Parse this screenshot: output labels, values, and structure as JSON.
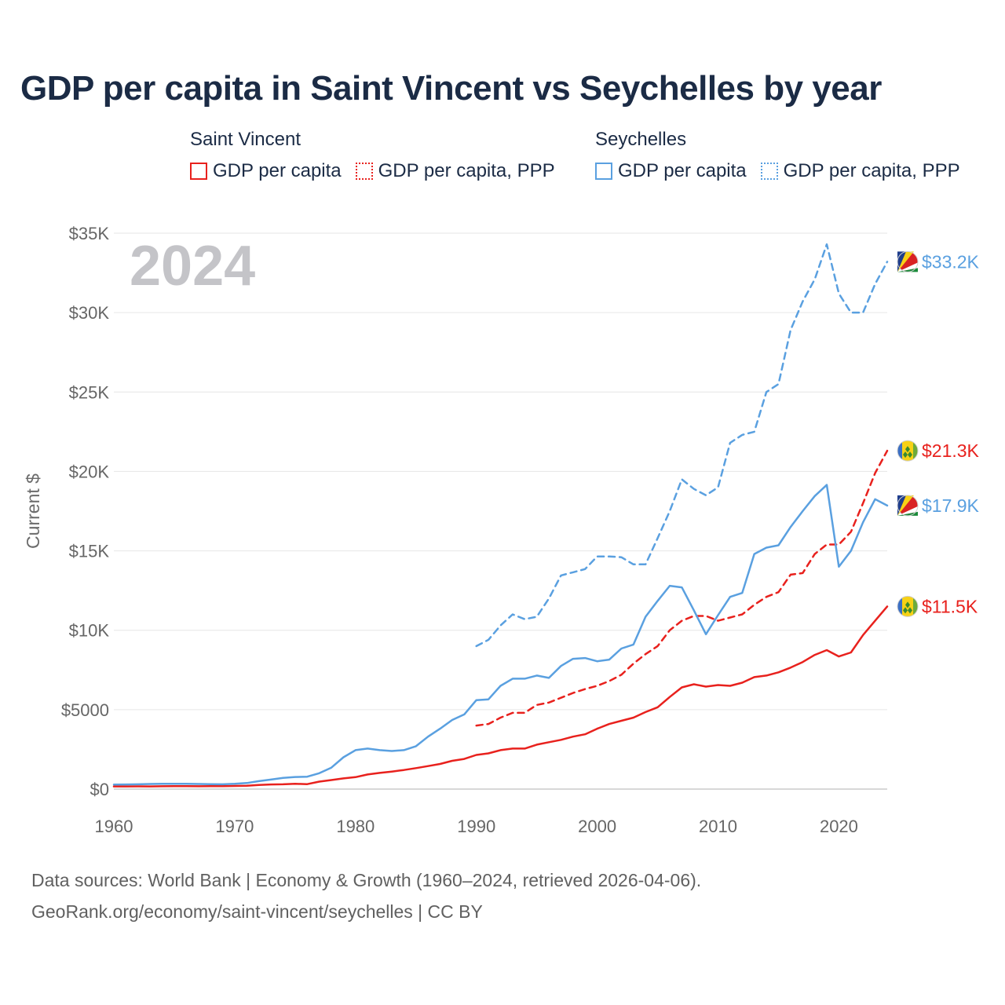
{
  "title": "GDP per capita in Saint Vincent vs Seychelles by year",
  "year_watermark": "2024",
  "legend": {
    "groups": [
      {
        "title": "Saint Vincent",
        "items": [
          {
            "label": "GDP per capita",
            "style": "solid",
            "color": "#e8211d"
          },
          {
            "label": "GDP per capita, PPP",
            "style": "dotted",
            "color": "#e8211d"
          }
        ]
      },
      {
        "title": "Seychelles",
        "items": [
          {
            "label": "GDP per capita",
            "style": "solid",
            "color": "#5aa0e0"
          },
          {
            "label": "GDP per capita, PPP",
            "style": "dotted",
            "color": "#5aa0e0"
          }
        ]
      }
    ]
  },
  "footer": {
    "line1": "Data sources: World Bank | Economy & Growth (1960–2024, retrieved 2026-04-06).",
    "line2": "GeoRank.org/economy/saint-vincent/seychelles | CC BY"
  },
  "chart_data": {
    "type": "line",
    "title": "GDP per capita in Saint Vincent vs Seychelles by year",
    "ylabel": "Current $",
    "xlabel": "",
    "xlim": [
      1960,
      2024
    ],
    "ylim": [
      0,
      35000
    ],
    "x_ticks": [
      1960,
      1970,
      1980,
      1990,
      2000,
      2010,
      2020
    ],
    "x_tick_labels": [
      "1960",
      "1970",
      "1980",
      "1990",
      "2000",
      "2010",
      "2020"
    ],
    "y_ticks": [
      0,
      5000,
      10000,
      15000,
      20000,
      25000,
      30000,
      35000
    ],
    "y_tick_labels": [
      "$0",
      "$5000",
      "$10K",
      "$15K",
      "$20K",
      "$25K",
      "$30K",
      "$35K"
    ],
    "grid": true,
    "series": [
      {
        "name": "Saint Vincent GDP per capita",
        "country": "Saint Vincent",
        "flag": "saint-vincent-flag-icon",
        "color": "#e8211d",
        "dash": "solid",
        "end_label": "$11.5K",
        "x": [
          1960,
          1961,
          1962,
          1963,
          1964,
          1965,
          1966,
          1967,
          1968,
          1969,
          1970,
          1971,
          1972,
          1973,
          1974,
          1975,
          1976,
          1977,
          1978,
          1979,
          1980,
          1981,
          1982,
          1983,
          1984,
          1985,
          1986,
          1987,
          1988,
          1989,
          1990,
          1991,
          1992,
          1993,
          1994,
          1995,
          1996,
          1997,
          1998,
          1999,
          2000,
          2001,
          2002,
          2003,
          2004,
          2005,
          2006,
          2007,
          2008,
          2009,
          2010,
          2011,
          2012,
          2013,
          2014,
          2015,
          2016,
          2017,
          2018,
          2019,
          2020,
          2021,
          2022,
          2023,
          2024
        ],
        "values": [
          170,
          170,
          175,
          170,
          180,
          185,
          185,
          180,
          185,
          185,
          200,
          215,
          260,
          290,
          300,
          330,
          310,
          470,
          570,
          670,
          750,
          920,
          1020,
          1100,
          1200,
          1320,
          1450,
          1580,
          1780,
          1900,
          2150,
          2250,
          2450,
          2550,
          2550,
          2800,
          2950,
          3100,
          3300,
          3450,
          3800,
          4100,
          4300,
          4500,
          4850,
          5150,
          5800,
          6400,
          6600,
          6450,
          6550,
          6500,
          6700,
          7050,
          7150,
          7350,
          7650,
          8000,
          8450,
          8750,
          8350,
          8600,
          9700,
          10600,
          11500
        ]
      },
      {
        "name": "Saint Vincent GDP per capita, PPP",
        "country": "Saint Vincent",
        "flag": "saint-vincent-flag-icon",
        "color": "#e8211d",
        "dash": "dashed",
        "end_label": "$21.3K",
        "x": [
          1990,
          1991,
          1992,
          1993,
          1994,
          1995,
          1996,
          1997,
          1998,
          1999,
          2000,
          2001,
          2002,
          2003,
          2004,
          2005,
          2006,
          2007,
          2008,
          2009,
          2010,
          2011,
          2012,
          2013,
          2014,
          2015,
          2016,
          2017,
          2018,
          2019,
          2020,
          2021,
          2022,
          2023,
          2024
        ],
        "values": [
          4000,
          4100,
          4500,
          4800,
          4800,
          5300,
          5450,
          5750,
          6050,
          6300,
          6500,
          6800,
          7200,
          7900,
          8500,
          9000,
          10000,
          10600,
          10900,
          10900,
          10600,
          10800,
          11000,
          11600,
          12100,
          12400,
          13500,
          13600,
          14800,
          15400,
          15400,
          16200,
          18000,
          19900,
          21300
        ]
      },
      {
        "name": "Seychelles GDP per capita",
        "country": "Seychelles",
        "flag": "seychelles-flag-icon",
        "color": "#5aa0e0",
        "dash": "solid",
        "end_label": "$17.9K",
        "x": [
          1960,
          1961,
          1962,
          1963,
          1964,
          1965,
          1966,
          1967,
          1968,
          1969,
          1970,
          1971,
          1972,
          1973,
          1974,
          1975,
          1976,
          1977,
          1978,
          1979,
          1980,
          1981,
          1982,
          1983,
          1984,
          1985,
          1986,
          1987,
          1988,
          1989,
          1990,
          1991,
          1992,
          1993,
          1994,
          1995,
          1996,
          1997,
          1998,
          1999,
          2000,
          2001,
          2002,
          2003,
          2004,
          2005,
          2006,
          2007,
          2008,
          2009,
          2010,
          2011,
          2012,
          2013,
          2014,
          2015,
          2016,
          2017,
          2018,
          2019,
          2020,
          2021,
          2022,
          2023,
          2024
        ],
        "values": [
          280,
          290,
          300,
          320,
          330,
          335,
          330,
          320,
          310,
          300,
          330,
          380,
          500,
          600,
          700,
          760,
          780,
          1000,
          1350,
          2000,
          2450,
          2550,
          2450,
          2400,
          2450,
          2700,
          3300,
          3800,
          4350,
          4700,
          5600,
          5650,
          6500,
          6950,
          6950,
          7150,
          7000,
          7750,
          8200,
          8250,
          8050,
          8150,
          8850,
          9100,
          10850,
          11850,
          12800,
          12700,
          11250,
          9750,
          10950,
          12100,
          12350,
          14800,
          15200,
          15350,
          16500,
          17500,
          18450,
          19150,
          14000,
          15000,
          16800,
          18250,
          17850
        ]
      },
      {
        "name": "Seychelles GDP per capita, PPP",
        "country": "Seychelles",
        "flag": "seychelles-flag-icon",
        "color": "#5aa0e0",
        "dash": "dashed",
        "end_label": "$33.2K",
        "x": [
          1990,
          1991,
          1992,
          1993,
          1994,
          1995,
          1996,
          1997,
          1998,
          1999,
          2000,
          2001,
          2002,
          2003,
          2004,
          2005,
          2006,
          2007,
          2008,
          2009,
          2010,
          2011,
          2012,
          2013,
          2014,
          2015,
          2016,
          2017,
          2018,
          2019,
          2020,
          2021,
          2022,
          2023,
          2024
        ],
        "values": [
          9000,
          9400,
          10300,
          11000,
          10700,
          10850,
          12000,
          13450,
          13650,
          13850,
          14650,
          14650,
          14600,
          14150,
          14150,
          15800,
          17500,
          19500,
          18900,
          18500,
          19000,
          21800,
          22300,
          22500,
          25000,
          25500,
          28900,
          30700,
          32100,
          34300,
          31200,
          30000,
          30000,
          31800,
          33200
        ]
      }
    ]
  }
}
